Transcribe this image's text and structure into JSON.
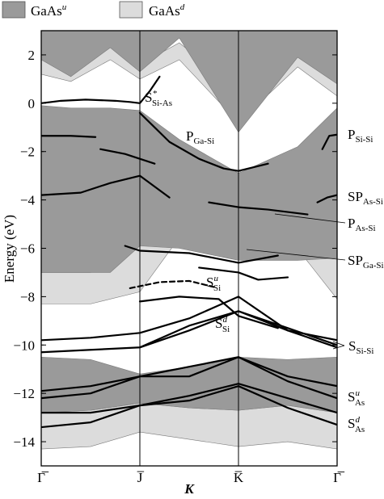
{
  "chart_data": {
    "type": "line",
    "title": "",
    "xlabel": "K",
    "ylabel": "Energy (eV)",
    "ylim": [
      -15,
      3
    ],
    "yticks": [
      2,
      0,
      -2,
      -4,
      -6,
      -8,
      -10,
      -12,
      -14
    ],
    "ytick_labels": [
      "2",
      "0",
      "−2",
      "−4",
      "−6",
      "−8",
      "−10",
      "−12",
      "−14"
    ],
    "x_positions": [
      0,
      1,
      2,
      3
    ],
    "xtick_labels": [
      "Γ̅",
      "J̅",
      "K̅",
      "Γ̅"
    ],
    "grid": false,
    "legend": {
      "placement": "top-left, above plot",
      "entries": [
        {
          "name": "GaAs",
          "sup": "u",
          "color": "#9a9a9a"
        },
        {
          "name": "GaAs",
          "sup": "d",
          "color": "#dcdcdc"
        }
      ]
    },
    "colors": {
      "bulk_u": "#9a9a9a",
      "bulk_d": "#dcdcdc",
      "states": "#000000",
      "axes": "#000000"
    },
    "bulk_projection_up": [
      {
        "x": [
          0,
          0.3,
          0.7,
          1.0
        ],
        "upper": [
          3.0,
          3.0,
          3.0,
          3.0
        ],
        "lower": [
          1.8,
          1.1,
          2.3,
          1.3
        ]
      },
      {
        "x": [
          1.0,
          1.4,
          2.0,
          2.6,
          3.0
        ],
        "upper": [
          3.0,
          3.0,
          3.0,
          3.0,
          3.0
        ],
        "lower": [
          1.3,
          2.7,
          -1.2,
          1.9,
          0.8
        ]
      },
      {
        "x": [
          0,
          0.3,
          0.7,
          1.0,
          1.4,
          2.0,
          2.6,
          3.0
        ],
        "upper": [
          -0.1,
          -0.2,
          -0.2,
          -0.3,
          -1.5,
          -2.9,
          -1.8,
          -0.2
        ],
        "lower": [
          -7.0,
          -7.0,
          -7.0,
          -5.9,
          -6.0,
          -6.5,
          -6.5,
          -6.4
        ]
      },
      {
        "x": [
          0,
          0.5,
          1.0,
          1.5,
          2.0,
          2.5,
          3.0
        ],
        "upper": [
          -10.5,
          -10.6,
          -11.2,
          -10.9,
          -10.5,
          -10.6,
          -10.5
        ],
        "lower": [
          -12.8,
          -12.7,
          -12.4,
          -12.6,
          -12.7,
          -12.5,
          -12.8
        ]
      }
    ],
    "bulk_projection_down": [
      {
        "x": [
          0,
          0.3,
          0.7,
          1.0,
          1.4,
          2.0,
          2.6,
          3.0
        ],
        "upper": [
          2.3,
          2.1,
          2.6,
          1.6,
          2.5,
          0.5,
          2.4,
          1.0
        ],
        "lower": [
          1.2,
          0.9,
          1.8,
          1.0,
          1.8,
          -0.8,
          1.5,
          0.3
        ]
      },
      {
        "x": [
          0,
          0.5,
          1.0,
          1.5,
          2.0,
          2.5,
          3.0
        ],
        "upper": [
          -7.0,
          -7.0,
          -5.9,
          -3.2,
          -2.8,
          -3.5,
          -6.4
        ],
        "lower": [
          -8.3,
          -8.3,
          -7.8,
          -5.0,
          -4.3,
          -5.5,
          -8.1
        ]
      },
      {
        "x": [
          0,
          0.5,
          1.0,
          1.5,
          2.0,
          2.5,
          3.0
        ],
        "upper": [
          -12.8,
          -12.7,
          -12.4,
          -12.6,
          -12.7,
          -12.5,
          -12.8
        ],
        "lower": [
          -14.3,
          -14.2,
          -13.6,
          -13.9,
          -14.2,
          -14.0,
          -14.3
        ]
      }
    ],
    "surface_states": [
      {
        "label": "S*Si-As",
        "x": [
          0,
          0.2,
          0.45,
          0.75,
          0.9,
          1.0,
          1.1,
          1.2
        ],
        "y": [
          0.0,
          0.1,
          0.15,
          0.1,
          0.05,
          0.0,
          0.5,
          1.1
        ]
      },
      {
        "label": "PGa-Si",
        "x": [
          1.0,
          1.3,
          1.6,
          1.85,
          2.0,
          2.3
        ],
        "y": [
          -0.4,
          -1.6,
          -2.3,
          -2.7,
          -2.8,
          -2.5
        ]
      },
      {
        "label": "PSi-Si",
        "x": [
          2.85,
          2.92,
          3.0
        ],
        "y": [
          -1.9,
          -1.35,
          -1.3
        ]
      },
      {
        "x": [
          0,
          0.3,
          0.55
        ],
        "y": [
          -1.35,
          -1.35,
          -1.4
        ]
      },
      {
        "x": [
          0.6,
          0.85,
          1.15
        ],
        "y": [
          -1.9,
          -2.1,
          -2.5
        ]
      },
      {
        "x": [
          0,
          0.4,
          0.7,
          1.0,
          1.3
        ],
        "y": [
          -3.8,
          -3.7,
          -3.3,
          -3.0,
          -3.9
        ]
      },
      {
        "label": "SPAs-Si",
        "x": [
          2.8,
          2.9,
          3.0
        ],
        "y": [
          -4.1,
          -3.9,
          -3.8
        ]
      },
      {
        "label": "PAs-Si",
        "x": [
          1.7,
          2.0,
          2.3,
          2.7
        ],
        "y": [
          -4.1,
          -4.3,
          -4.4,
          -4.6
        ]
      },
      {
        "label": "SPGa-Si",
        "x": [
          0.85,
          1.0,
          1.5,
          2.0,
          2.4
        ],
        "y": [
          -5.9,
          -6.1,
          -6.2,
          -6.6,
          -6.3
        ]
      },
      {
        "label": "SuSi",
        "x": [
          1.6,
          2.0,
          2.2,
          2.5
        ],
        "y": [
          -6.8,
          -7.0,
          -7.3,
          -7.2
        ]
      },
      {
        "x": [
          0.9,
          1.2,
          1.5,
          1.75
        ],
        "y": [
          -7.65,
          -7.4,
          -7.35,
          -7.6
        ],
        "dashed": true
      },
      {
        "x": [
          1.0,
          1.4,
          1.8,
          2.0,
          2.4
        ],
        "y": [
          -8.2,
          -8.0,
          -8.1,
          -8.8,
          -9.3
        ]
      },
      {
        "label": "SdSi",
        "x": [
          1.0,
          1.5,
          2.0,
          2.5,
          3.0
        ],
        "y": [
          -10.1,
          -9.4,
          -8.6,
          -9.3,
          -10.0
        ]
      },
      {
        "label": "SSi-Si",
        "x": [
          0,
          0.5,
          1.0,
          1.5,
          2.0,
          2.5,
          3.0
        ],
        "y": [
          -9.8,
          -9.7,
          -9.5,
          -8.9,
          -8.0,
          -9.4,
          -9.8
        ]
      },
      {
        "x": [
          0,
          0.5,
          1.0,
          1.5,
          2.0,
          2.5,
          3.0
        ],
        "y": [
          -10.3,
          -10.2,
          -10.1,
          -9.2,
          -8.6,
          -9.4,
          -10.1
        ]
      },
      {
        "x": [
          0,
          0.5,
          1.0,
          1.5,
          2.0,
          2.5,
          3.0
        ],
        "y": [
          -11.9,
          -11.7,
          -11.3,
          -10.9,
          -10.5,
          -11.3,
          -11.7
        ]
      },
      {
        "label": "SuAs",
        "x": [
          0,
          0.5,
          1.0,
          1.5,
          2.0,
          2.5,
          3.0
        ],
        "y": [
          -12.2,
          -12.0,
          -11.3,
          -11.3,
          -10.5,
          -11.5,
          -12.2
        ]
      },
      {
        "x": [
          0,
          0.5,
          1.0,
          1.5,
          2.0,
          2.5,
          3.0
        ],
        "y": [
          -12.8,
          -12.8,
          -12.5,
          -12.1,
          -11.6,
          -12.2,
          -12.8
        ]
      },
      {
        "label": "SdAs",
        "x": [
          0,
          0.5,
          1.0,
          1.5,
          2.0,
          2.5,
          3.0
        ],
        "y": [
          -13.4,
          -13.2,
          -12.5,
          -12.3,
          -11.7,
          -12.6,
          -13.3
        ]
      }
    ],
    "annotations": [
      {
        "id": "s-si-as-star",
        "main": "S",
        "sup": "*",
        "sub": "Si-As"
      },
      {
        "id": "p-ga-si",
        "main": "P",
        "sup": "",
        "sub": "Ga-Si"
      },
      {
        "id": "p-si-si",
        "main": "P",
        "sup": "",
        "sub": "Si-Si"
      },
      {
        "id": "sp-as-si",
        "main": "SP",
        "sup": "",
        "sub": "As-Si"
      },
      {
        "id": "p-as-si",
        "main": "P",
        "sup": "",
        "sub": "As-Si"
      },
      {
        "id": "sp-ga-si",
        "main": "SP",
        "sup": "",
        "sub": "Ga-Si"
      },
      {
        "id": "s-si-u",
        "main": "S",
        "sup": "u",
        "sub": "Si"
      },
      {
        "id": "s-si-d",
        "main": "S",
        "sup": "d",
        "sub": "Si"
      },
      {
        "id": "s-si-si",
        "main": "S",
        "sup": "",
        "sub": "Si-Si"
      },
      {
        "id": "s-as-u",
        "main": "S",
        "sup": "u",
        "sub": "As"
      },
      {
        "id": "s-as-d",
        "main": "S",
        "sup": "d",
        "sub": "As"
      }
    ]
  }
}
